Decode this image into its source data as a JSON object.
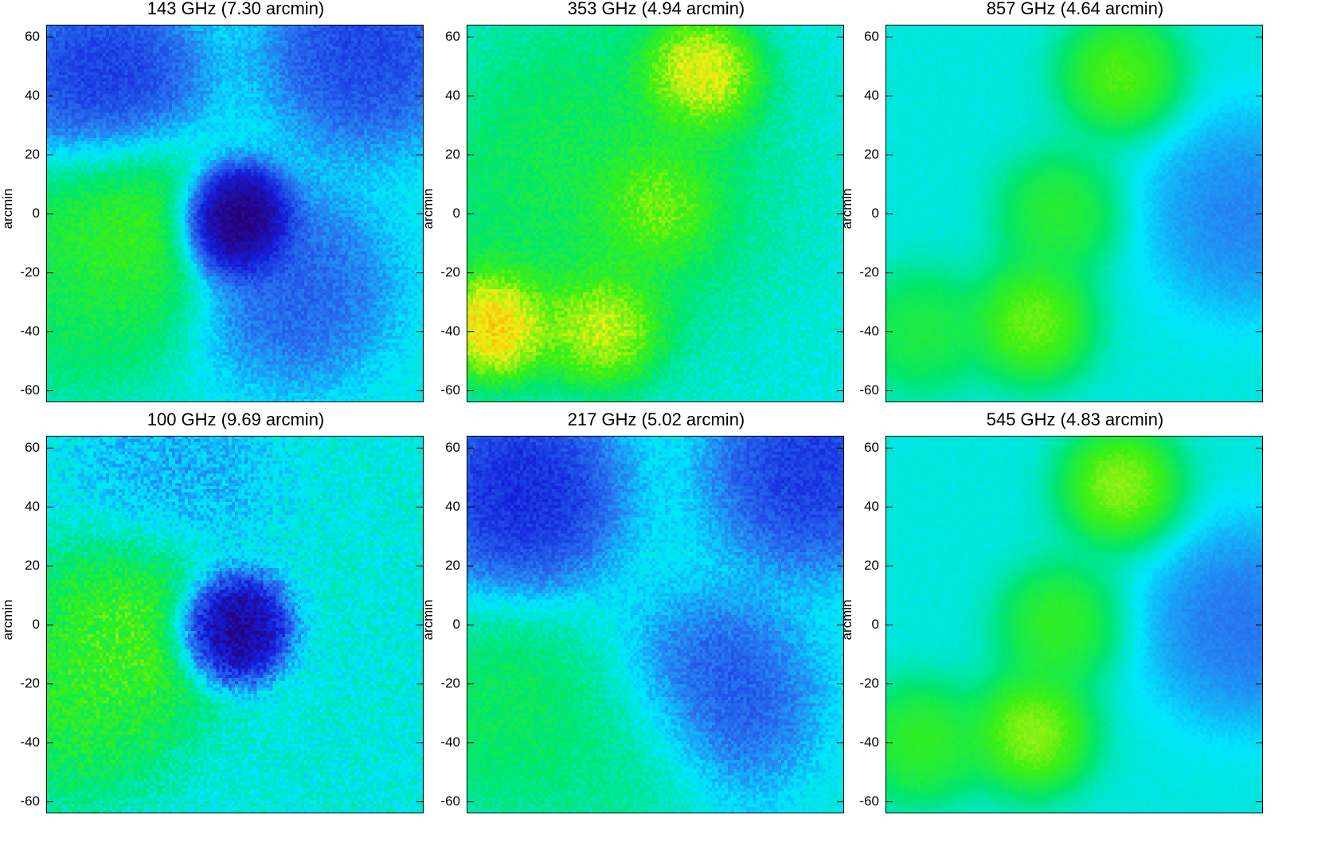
{
  "chart_data": [
    {
      "type": "heatmap",
      "title": "143 GHz (7.30 arcmin)",
      "ylabel": "arcmin",
      "ylim": [
        -64,
        64
      ],
      "yticks": [
        "60",
        "40",
        "20",
        "0",
        "-20",
        "-40",
        "-60"
      ],
      "colormap": "rainbow",
      "features": [
        {
          "kind": "deep-minimum",
          "x": 0,
          "y": -3,
          "level": 0.02
        },
        {
          "kind": "local-maximum",
          "x": -37,
          "y": -5,
          "level": 0.7
        },
        {
          "kind": "local-maximum",
          "x": -52,
          "y": -28,
          "level": 0.6
        },
        {
          "kind": "low-region",
          "x": -44,
          "y": 45,
          "level": 0.18
        },
        {
          "kind": "low-region",
          "x": 44,
          "y": 55,
          "level": 0.2
        },
        {
          "kind": "low-region",
          "x": 20,
          "y": -25,
          "level": 0.25
        }
      ]
    },
    {
      "type": "heatmap",
      "title": "353 GHz (4.94 arcmin)",
      "ylabel": "arcmin",
      "ylim": [
        -64,
        64
      ],
      "yticks": [
        "60",
        "40",
        "20",
        "0",
        "-20",
        "-40",
        "-60"
      ],
      "colormap": "rainbow",
      "features": [
        {
          "kind": "peak",
          "x": 15,
          "y": 47,
          "level": 0.85
        },
        {
          "kind": "peak",
          "x": 0,
          "y": 3,
          "level": 0.78
        },
        {
          "kind": "peak",
          "x": -54,
          "y": -37,
          "level": 0.88
        },
        {
          "kind": "peak",
          "x": -18,
          "y": -38,
          "level": 0.82
        },
        {
          "kind": "ridge",
          "x": -20,
          "y": 10,
          "level": 0.62
        }
      ]
    },
    {
      "type": "heatmap",
      "title": "857 GHz (4.64 arcmin)",
      "ylabel": "arcmin",
      "ylim": [
        -64,
        64
      ],
      "yticks": [
        "60",
        "40",
        "20",
        "0",
        "-20",
        "-40",
        "-60"
      ],
      "colormap": "rainbow",
      "features": [
        {
          "kind": "peak",
          "x": 16,
          "y": 47,
          "level": 0.72
        },
        {
          "kind": "peak",
          "x": -5,
          "y": 0,
          "level": 0.66
        },
        {
          "kind": "peak",
          "x": -14,
          "y": -37,
          "level": 0.74
        },
        {
          "kind": "peak",
          "x": -52,
          "y": -40,
          "level": 0.64
        },
        {
          "kind": "low-region",
          "x": 58,
          "y": 0,
          "level": 0.3
        }
      ]
    },
    {
      "type": "heatmap",
      "title": "100 GHz (9.69 arcmin)",
      "ylabel": "arcmin",
      "ylim": [
        -64,
        64
      ],
      "yticks": [
        "60",
        "40",
        "20",
        "0",
        "-20",
        "-40",
        "-60"
      ],
      "colormap": "rainbow",
      "features": [
        {
          "kind": "deep-minimum",
          "x": -2,
          "y": -1,
          "level": 0.05
        },
        {
          "kind": "local-maximum",
          "x": -33,
          "y": 0,
          "level": 0.7
        },
        {
          "kind": "local-maximum",
          "x": -55,
          "y": -25,
          "level": 0.65
        },
        {
          "kind": "low-region",
          "x": -20,
          "y": 50,
          "level": 0.35
        }
      ]
    },
    {
      "type": "heatmap",
      "title": "217 GHz (5.02 arcmin)",
      "ylabel": "arcmin",
      "ylim": [
        -64,
        64
      ],
      "yticks": [
        "60",
        "40",
        "20",
        "0",
        "-20",
        "-40",
        "-60"
      ],
      "colormap": "rainbow",
      "features": [
        {
          "kind": "low-region",
          "x": -45,
          "y": 45,
          "level": 0.15
        },
        {
          "kind": "low-region",
          "x": 52,
          "y": 52,
          "level": 0.18
        },
        {
          "kind": "low-region",
          "x": 20,
          "y": -25,
          "level": 0.22
        },
        {
          "kind": "local-maximum",
          "x": -50,
          "y": -30,
          "level": 0.6
        },
        {
          "kind": "local-maximum",
          "x": -10,
          "y": -45,
          "level": 0.55
        }
      ]
    },
    {
      "type": "heatmap",
      "title": "545 GHz (4.83 arcmin)",
      "ylabel": "arcmin",
      "ylim": [
        -64,
        64
      ],
      "yticks": [
        "60",
        "40",
        "20",
        "0",
        "-20",
        "-40",
        "-60"
      ],
      "colormap": "rainbow",
      "features": [
        {
          "kind": "peak",
          "x": 16,
          "y": 47,
          "level": 0.76
        },
        {
          "kind": "peak",
          "x": -5,
          "y": 0,
          "level": 0.68
        },
        {
          "kind": "peak",
          "x": -14,
          "y": -37,
          "level": 0.76
        },
        {
          "kind": "peak",
          "x": -52,
          "y": -40,
          "level": 0.68
        },
        {
          "kind": "low-region",
          "x": 58,
          "y": 0,
          "level": 0.28
        }
      ]
    }
  ]
}
